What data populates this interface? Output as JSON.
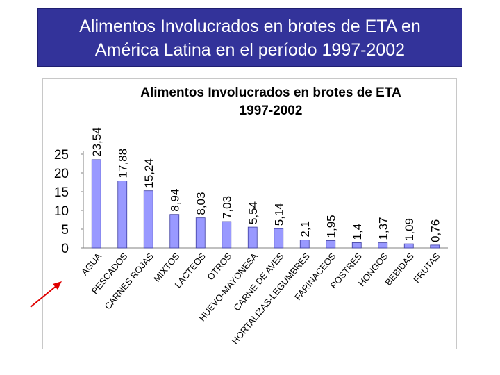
{
  "slide": {
    "title_line1": "Alimentos Involucrados en brotes de ETA en",
    "title_line2": "América Latina en el período 1997-2002"
  },
  "colors": {
    "title_bg": "#33339a",
    "bar_fill": "#9999ff",
    "bar_stroke": "#3c3ca0",
    "arrow": "#e00000"
  },
  "chart_data": {
    "type": "bar",
    "title_line1": "Alimentos Involucrados en brotes de ETA",
    "title_line2": "1997-2002",
    "xlabel": "",
    "ylabel": "",
    "ylim": [
      0,
      25
    ],
    "yticks": [
      "0",
      "5",
      "10",
      "15",
      "20",
      "25"
    ],
    "grid": false,
    "legend": "none",
    "categories": [
      "AGUA",
      "PESCADOS",
      "CARNES ROJAS",
      "MIXTOS",
      "LACTEOS",
      "OTROS",
      "HUEVO-MAYONESA",
      "CARNE DE AVES",
      "HORTALIZAS-LEGUMBRES",
      "FARINACEOS",
      "POSTRES",
      "HONGOS",
      "BEBIDAS",
      "FRUTAS"
    ],
    "values": [
      23.54,
      17.88,
      15.24,
      8.94,
      8.03,
      7.03,
      5.54,
      5.14,
      2.1,
      1.95,
      1.4,
      1.37,
      1.09,
      0.76
    ],
    "value_labels": [
      "23,54",
      "17,88",
      "15,24",
      "8,94",
      "8,03",
      "7,03",
      "5,54",
      "5,14",
      "2,1",
      "1,95",
      "1,4",
      "1,37",
      "1,09",
      "0,76"
    ]
  }
}
